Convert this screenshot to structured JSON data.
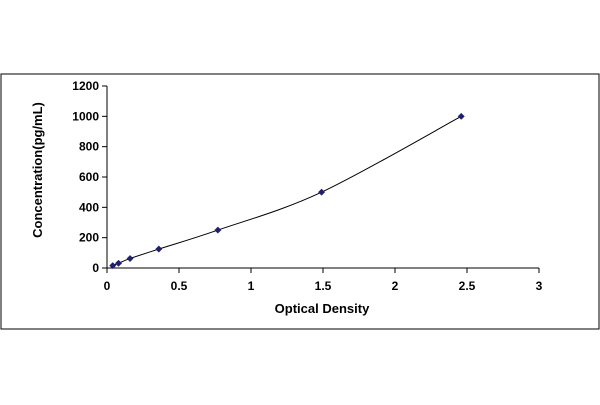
{
  "chart_data": {
    "type": "scatter",
    "title": "",
    "xlabel": "Optical Density",
    "ylabel": "Concentration(pg/mL)",
    "xlim": [
      0,
      3
    ],
    "ylim": [
      0,
      1200
    ],
    "x_ticks": [
      "0",
      "0.5",
      "1",
      "1.5",
      "2",
      "2.5",
      "3"
    ],
    "y_ticks": [
      "0",
      "200",
      "400",
      "600",
      "800",
      "1000",
      "1200"
    ],
    "grid": false,
    "legend": "none",
    "has_trendline": true,
    "series": [
      {
        "x": [
          0.04,
          0.08,
          0.16,
          0.36,
          0.77,
          1.49,
          2.46
        ],
        "y": [
          15.6,
          31.2,
          62.5,
          125,
          250,
          500,
          1000
        ],
        "marker_color": "#1f1f6e",
        "line_color": "#000000"
      }
    ]
  }
}
